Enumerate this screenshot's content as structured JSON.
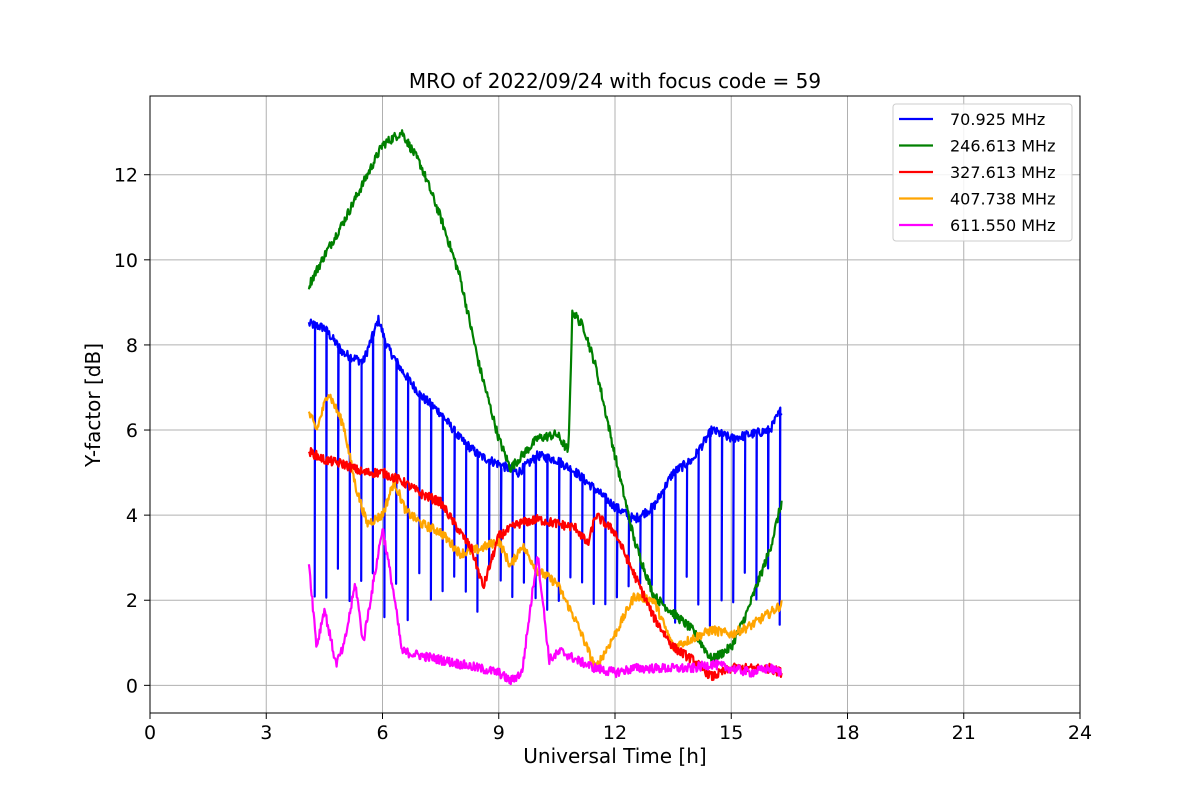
{
  "chart_data": {
    "type": "line",
    "title": "MRO of 2022/09/24 with focus code = 59",
    "xlabel": "Universal Time [h]",
    "ylabel": "Y-factor [dB]",
    "xlim": [
      0,
      24
    ],
    "ylim": [
      -0.65,
      13.85
    ],
    "xticks": [
      0,
      3,
      6,
      9,
      12,
      15,
      18,
      21,
      24
    ],
    "yticks": [
      0,
      2,
      4,
      6,
      8,
      10,
      12
    ],
    "grid": true,
    "legend_position": "top-right",
    "series": [
      {
        "name": " 70.925 MHz",
        "color": "#0000ff",
        "style": "calibration-spikes",
        "dip_to": 2.8,
        "spike_interval_h": 0.3,
        "points": [
          [
            4.1,
            8.5
          ],
          [
            4.5,
            8.4
          ],
          [
            5.0,
            7.8
          ],
          [
            5.5,
            7.6
          ],
          [
            5.9,
            8.6
          ],
          [
            6.1,
            8.0
          ],
          [
            6.5,
            7.4
          ],
          [
            7.0,
            6.8
          ],
          [
            7.5,
            6.4
          ],
          [
            8.0,
            5.8
          ],
          [
            8.5,
            5.4
          ],
          [
            9.0,
            5.2
          ],
          [
            9.5,
            5.0
          ],
          [
            10.0,
            5.4
          ],
          [
            10.5,
            5.3
          ],
          [
            11.0,
            5.0
          ],
          [
            11.5,
            4.6
          ],
          [
            12.0,
            4.2
          ],
          [
            12.5,
            3.9
          ],
          [
            13.0,
            4.2
          ],
          [
            13.5,
            5.0
          ],
          [
            14.0,
            5.3
          ],
          [
            14.5,
            6.0
          ],
          [
            15.0,
            5.8
          ],
          [
            15.5,
            5.9
          ],
          [
            16.0,
            6.0
          ],
          [
            16.3,
            6.5
          ]
        ]
      },
      {
        "name": "246.613 MHz",
        "color": "#008000",
        "style": "line",
        "points": [
          [
            4.1,
            9.4
          ],
          [
            4.5,
            10.1
          ],
          [
            5.0,
            10.9
          ],
          [
            5.5,
            11.8
          ],
          [
            6.0,
            12.7
          ],
          [
            6.5,
            13.0
          ],
          [
            7.0,
            12.2
          ],
          [
            7.5,
            11.0
          ],
          [
            8.0,
            9.6
          ],
          [
            8.5,
            7.5
          ],
          [
            9.0,
            5.8
          ],
          [
            9.3,
            5.1
          ],
          [
            9.6,
            5.4
          ],
          [
            10.0,
            5.8
          ],
          [
            10.5,
            5.9
          ],
          [
            10.8,
            5.5
          ],
          [
            10.9,
            8.8
          ],
          [
            11.2,
            8.4
          ],
          [
            11.5,
            7.5
          ],
          [
            12.0,
            5.4
          ],
          [
            12.5,
            3.4
          ],
          [
            13.0,
            2.1
          ],
          [
            13.5,
            1.7
          ],
          [
            14.0,
            1.3
          ],
          [
            14.5,
            0.6
          ],
          [
            15.0,
            0.9
          ],
          [
            15.4,
            1.7
          ],
          [
            16.0,
            3.2
          ],
          [
            16.3,
            4.3
          ]
        ]
      },
      {
        "name": "327.613 MHz",
        "color": "#ff0000",
        "style": "line",
        "points": [
          [
            4.1,
            5.5
          ],
          [
            4.5,
            5.3
          ],
          [
            5.0,
            5.2
          ],
          [
            5.5,
            5.0
          ],
          [
            6.0,
            5.0
          ],
          [
            6.5,
            4.8
          ],
          [
            7.0,
            4.5
          ],
          [
            7.5,
            4.3
          ],
          [
            8.0,
            3.6
          ],
          [
            8.3,
            3.2
          ],
          [
            8.6,
            2.3
          ],
          [
            9.0,
            3.5
          ],
          [
            9.5,
            3.8
          ],
          [
            10.0,
            3.9
          ],
          [
            10.5,
            3.8
          ],
          [
            11.0,
            3.7
          ],
          [
            11.3,
            3.3
          ],
          [
            11.5,
            4.0
          ],
          [
            12.0,
            3.6
          ],
          [
            12.5,
            2.6
          ],
          [
            13.0,
            1.6
          ],
          [
            13.5,
            0.9
          ],
          [
            14.0,
            0.6
          ],
          [
            14.5,
            0.2
          ],
          [
            15.0,
            0.4
          ],
          [
            15.5,
            0.4
          ],
          [
            16.0,
            0.4
          ],
          [
            16.3,
            0.3
          ]
        ]
      },
      {
        "name": "407.738 MHz",
        "color": "#ffa500",
        "style": "line",
        "points": [
          [
            4.1,
            6.4
          ],
          [
            4.3,
            6.0
          ],
          [
            4.6,
            6.9
          ],
          [
            5.0,
            6.1
          ],
          [
            5.3,
            4.7
          ],
          [
            5.6,
            3.8
          ],
          [
            6.0,
            4.0
          ],
          [
            6.3,
            4.8
          ],
          [
            6.6,
            4.1
          ],
          [
            7.0,
            3.8
          ],
          [
            7.5,
            3.6
          ],
          [
            8.0,
            3.1
          ],
          [
            8.5,
            3.2
          ],
          [
            9.0,
            3.4
          ],
          [
            9.3,
            2.8
          ],
          [
            9.6,
            3.3
          ],
          [
            10.0,
            2.7
          ],
          [
            10.5,
            2.4
          ],
          [
            11.0,
            1.5
          ],
          [
            11.5,
            0.4
          ],
          [
            12.0,
            1.2
          ],
          [
            12.5,
            2.1
          ],
          [
            13.0,
            2.0
          ],
          [
            13.5,
            0.9
          ],
          [
            14.0,
            1.1
          ],
          [
            14.5,
            1.3
          ],
          [
            15.0,
            1.2
          ],
          [
            15.5,
            1.4
          ],
          [
            16.0,
            1.7
          ],
          [
            16.3,
            1.9
          ]
        ]
      },
      {
        "name": "611.550 MHz",
        "color": "#ff00ff",
        "style": "line",
        "points": [
          [
            4.1,
            2.9
          ],
          [
            4.3,
            0.9
          ],
          [
            4.5,
            1.8
          ],
          [
            4.8,
            0.5
          ],
          [
            5.0,
            0.9
          ],
          [
            5.3,
            2.4
          ],
          [
            5.5,
            1.0
          ],
          [
            5.8,
            2.6
          ],
          [
            6.0,
            3.7
          ],
          [
            6.3,
            2.1
          ],
          [
            6.5,
            0.8
          ],
          [
            7.0,
            0.7
          ],
          [
            7.5,
            0.6
          ],
          [
            8.0,
            0.5
          ],
          [
            8.5,
            0.4
          ],
          [
            9.0,
            0.3
          ],
          [
            9.3,
            0.1
          ],
          [
            9.6,
            0.3
          ],
          [
            10.0,
            3.1
          ],
          [
            10.3,
            0.6
          ],
          [
            10.6,
            0.8
          ],
          [
            11.0,
            0.6
          ],
          [
            11.5,
            0.4
          ],
          [
            12.0,
            0.3
          ],
          [
            12.5,
            0.4
          ],
          [
            13.0,
            0.4
          ],
          [
            13.5,
            0.4
          ],
          [
            14.0,
            0.4
          ],
          [
            14.5,
            0.5
          ],
          [
            15.0,
            0.4
          ],
          [
            15.5,
            0.3
          ],
          [
            16.0,
            0.4
          ],
          [
            16.3,
            0.3
          ]
        ]
      }
    ]
  }
}
